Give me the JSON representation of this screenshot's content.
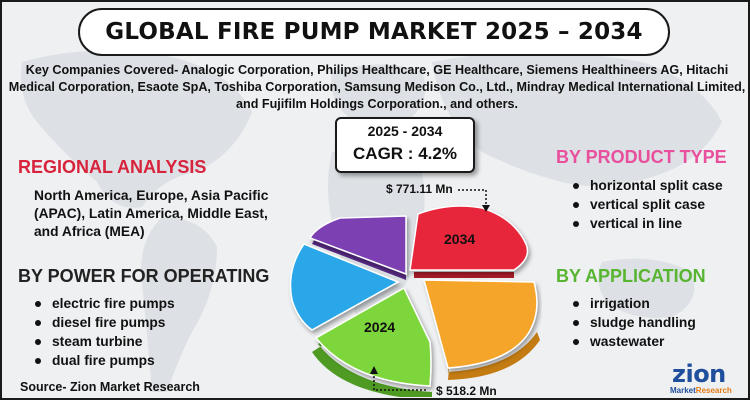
{
  "title": "GLOBAL FIRE PUMP MARKET 2025 – 2034",
  "companies": "Key Companies Covered- Analogic Corporation, Philips Healthcare, GE Healthcare, Siemens Healthineers AG, Hitachi Medical Corporation, Esaote SpA, Toshiba Corporation, Samsung Medison Co., Ltd., Mindray Medical International Limited, and Fujifilm Holdings Corporation., and others.",
  "cagr": {
    "years": "2025 - 2034",
    "value": "CAGR : 4.2%"
  },
  "regional": {
    "heading": "REGIONAL ANALYSIS",
    "text": "North America, Europe, Asia Pacific (APAC), Latin America, Middle East, and Africa (MEA)"
  },
  "power": {
    "heading": "BY POWER FOR OPERATING",
    "items": [
      "electric fire pumps",
      "diesel fire pumps",
      "steam turbine",
      "dual fire pumps"
    ]
  },
  "product": {
    "heading": "BY PRODUCT TYPE",
    "items": [
      "horizontal split case",
      "vertical split case",
      "vertical in line"
    ]
  },
  "application": {
    "heading": "BY APPLICATION",
    "items": [
      "irrigation",
      "sludge handling",
      "wastewater"
    ]
  },
  "pie": {
    "label_2034": "2034",
    "label_2024": "2024",
    "value_2034": "$ 771.11 Mn",
    "value_2024": "$ 518.2 Mn",
    "colors": {
      "red": "#e8283a",
      "orange": "#f5a52c",
      "green": "#7ed63c",
      "blue": "#2aa7e8",
      "purple": "#7b3fb3"
    }
  },
  "source": "Source- Zion Market Research",
  "logo": {
    "word": "zion",
    "sub1": "Market",
    "sub2": "Research"
  }
}
